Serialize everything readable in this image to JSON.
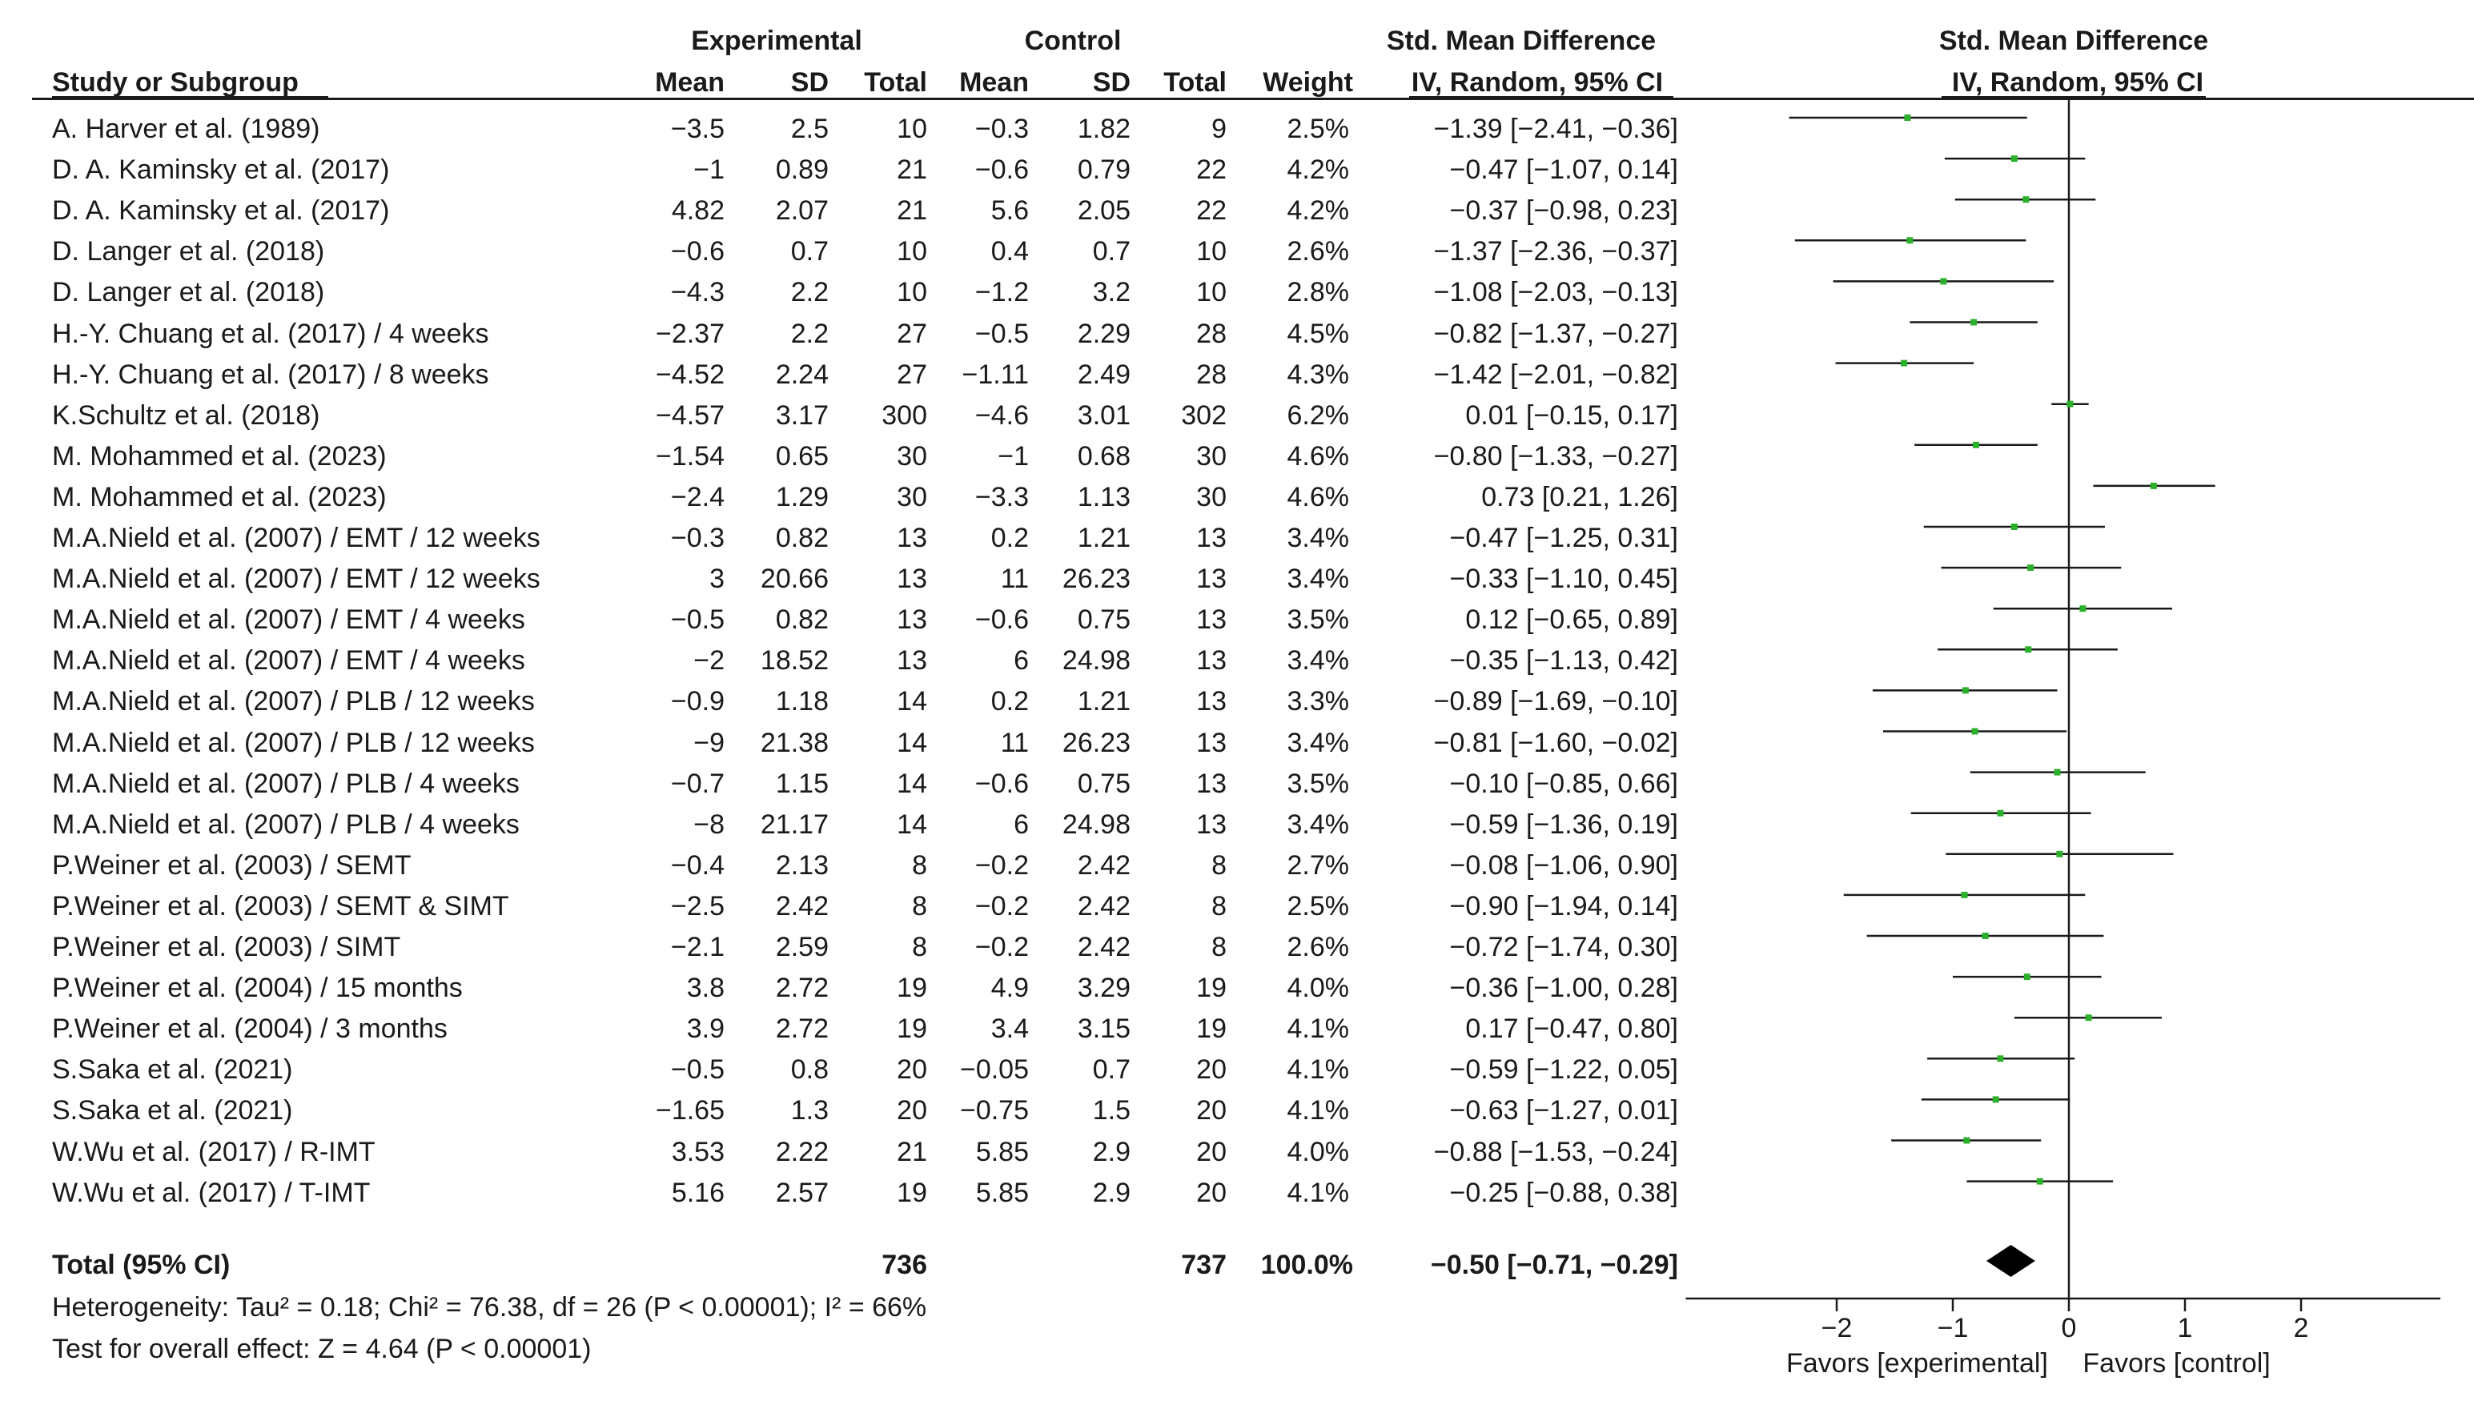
{
  "header": {
    "experimental": "Experimental",
    "control": "Control",
    "smd_table": "Std. Mean Difference",
    "smd_plot": "Std. Mean Difference",
    "study": "Study or Subgroup",
    "mean_e": "Mean",
    "sd_e": "SD",
    "total_e": "Total",
    "mean_c": "Mean",
    "sd_c": "SD",
    "total_c": "Total",
    "weight": "Weight",
    "ci_table": "IV, Random, 95% CI",
    "ci_plot": "IV, Random, 95% CI"
  },
  "rows": [
    {
      "study": "A. Harver et al. (1989)",
      "mean_e": "−3.5",
      "sd_e": "2.5",
      "n_e": "10",
      "mean_c": "−0.3",
      "sd_c": "1.82",
      "n_c": "9",
      "weight": "2.5%",
      "ci": "−1.39 [−2.41, −0.36]"
    },
    {
      "study": "D. A. Kaminsky et al. (2017)",
      "mean_e": "−1",
      "sd_e": "0.89",
      "n_e": "21",
      "mean_c": "−0.6",
      "sd_c": "0.79",
      "n_c": "22",
      "weight": "4.2%",
      "ci": "−0.47 [−1.07, 0.14]"
    },
    {
      "study": "D. A. Kaminsky et al. (2017)",
      "mean_e": "4.82",
      "sd_e": "2.07",
      "n_e": "21",
      "mean_c": "5.6",
      "sd_c": "2.05",
      "n_c": "22",
      "weight": "4.2%",
      "ci": "−0.37 [−0.98, 0.23]"
    },
    {
      "study": "D. Langer et al. (2018)",
      "mean_e": "−0.6",
      "sd_e": "0.7",
      "n_e": "10",
      "mean_c": "0.4",
      "sd_c": "0.7",
      "n_c": "10",
      "weight": "2.6%",
      "ci": "−1.37 [−2.36, −0.37]"
    },
    {
      "study": "D. Langer et al. (2018)",
      "mean_e": "−4.3",
      "sd_e": "2.2",
      "n_e": "10",
      "mean_c": "−1.2",
      "sd_c": "3.2",
      "n_c": "10",
      "weight": "2.8%",
      "ci": "−1.08 [−2.03, −0.13]"
    },
    {
      "study": "H.-Y. Chuang et al. (2017) / 4 weeks",
      "mean_e": "−2.37",
      "sd_e": "2.2",
      "n_e": "27",
      "mean_c": "−0.5",
      "sd_c": "2.29",
      "n_c": "28",
      "weight": "4.5%",
      "ci": "−0.82 [−1.37, −0.27]"
    },
    {
      "study": "H.-Y. Chuang et al. (2017) / 8 weeks",
      "mean_e": "−4.52",
      "sd_e": "2.24",
      "n_e": "27",
      "mean_c": "−1.11",
      "sd_c": "2.49",
      "n_c": "28",
      "weight": "4.3%",
      "ci": "−1.42 [−2.01, −0.82]"
    },
    {
      "study": "K.Schultz et al. (2018)",
      "mean_e": "−4.57",
      "sd_e": "3.17",
      "n_e": "300",
      "mean_c": "−4.6",
      "sd_c": "3.01",
      "n_c": "302",
      "weight": "6.2%",
      "ci": "0.01 [−0.15, 0.17]"
    },
    {
      "study": "M. Mohammed et al. (2023)",
      "mean_e": "−1.54",
      "sd_e": "0.65",
      "n_e": "30",
      "mean_c": "−1",
      "sd_c": "0.68",
      "n_c": "30",
      "weight": "4.6%",
      "ci": "−0.80 [−1.33, −0.27]"
    },
    {
      "study": "M. Mohammed et al. (2023)",
      "mean_e": "−2.4",
      "sd_e": "1.29",
      "n_e": "30",
      "mean_c": "−3.3",
      "sd_c": "1.13",
      "n_c": "30",
      "weight": "4.6%",
      "ci": "0.73 [0.21, 1.26]"
    },
    {
      "study": "M.A.Nield et al. (2007) / EMT / 12 weeks",
      "mean_e": "−0.3",
      "sd_e": "0.82",
      "n_e": "13",
      "mean_c": "0.2",
      "sd_c": "1.21",
      "n_c": "13",
      "weight": "3.4%",
      "ci": "−0.47 [−1.25, 0.31]"
    },
    {
      "study": "M.A.Nield et al. (2007) / EMT / 12 weeks",
      "mean_e": "3",
      "sd_e": "20.66",
      "n_e": "13",
      "mean_c": "11",
      "sd_c": "26.23",
      "n_c": "13",
      "weight": "3.4%",
      "ci": "−0.33 [−1.10, 0.45]"
    },
    {
      "study": "M.A.Nield et al. (2007) / EMT / 4 weeks",
      "mean_e": "−0.5",
      "sd_e": "0.82",
      "n_e": "13",
      "mean_c": "−0.6",
      "sd_c": "0.75",
      "n_c": "13",
      "weight": "3.5%",
      "ci": "0.12 [−0.65, 0.89]"
    },
    {
      "study": "M.A.Nield et al. (2007) / EMT / 4 weeks",
      "mean_e": "−2",
      "sd_e": "18.52",
      "n_e": "13",
      "mean_c": "6",
      "sd_c": "24.98",
      "n_c": "13",
      "weight": "3.4%",
      "ci": "−0.35 [−1.13, 0.42]"
    },
    {
      "study": "M.A.Nield et al. (2007) / PLB / 12 weeks",
      "mean_e": "−0.9",
      "sd_e": "1.18",
      "n_e": "14",
      "mean_c": "0.2",
      "sd_c": "1.21",
      "n_c": "13",
      "weight": "3.3%",
      "ci": "−0.89 [−1.69, −0.10]"
    },
    {
      "study": "M.A.Nield et al. (2007) / PLB / 12 weeks",
      "mean_e": "−9",
      "sd_e": "21.38",
      "n_e": "14",
      "mean_c": "11",
      "sd_c": "26.23",
      "n_c": "13",
      "weight": "3.4%",
      "ci": "−0.81 [−1.60, −0.02]"
    },
    {
      "study": "M.A.Nield et al. (2007) / PLB / 4 weeks",
      "mean_e": "−0.7",
      "sd_e": "1.15",
      "n_e": "14",
      "mean_c": "−0.6",
      "sd_c": "0.75",
      "n_c": "13",
      "weight": "3.5%",
      "ci": "−0.10 [−0.85, 0.66]"
    },
    {
      "study": "M.A.Nield et al. (2007) / PLB / 4 weeks",
      "mean_e": "−8",
      "sd_e": "21.17",
      "n_e": "14",
      "mean_c": "6",
      "sd_c": "24.98",
      "n_c": "13",
      "weight": "3.4%",
      "ci": "−0.59 [−1.36, 0.19]"
    },
    {
      "study": "P.Weiner et al. (2003) / SEMT",
      "mean_e": "−0.4",
      "sd_e": "2.13",
      "n_e": "8",
      "mean_c": "−0.2",
      "sd_c": "2.42",
      "n_c": "8",
      "weight": "2.7%",
      "ci": "−0.08 [−1.06, 0.90]"
    },
    {
      "study": "P.Weiner et al. (2003) / SEMT & SIMT",
      "mean_e": "−2.5",
      "sd_e": "2.42",
      "n_e": "8",
      "mean_c": "−0.2",
      "sd_c": "2.42",
      "n_c": "8",
      "weight": "2.5%",
      "ci": "−0.90 [−1.94, 0.14]"
    },
    {
      "study": "P.Weiner et al. (2003) / SIMT",
      "mean_e": "−2.1",
      "sd_e": "2.59",
      "n_e": "8",
      "mean_c": "−0.2",
      "sd_c": "2.42",
      "n_c": "8",
      "weight": "2.6%",
      "ci": "−0.72 [−1.74, 0.30]"
    },
    {
      "study": "P.Weiner et al. (2004) / 15 months",
      "mean_e": "3.8",
      "sd_e": "2.72",
      "n_e": "19",
      "mean_c": "4.9",
      "sd_c": "3.29",
      "n_c": "19",
      "weight": "4.0%",
      "ci": "−0.36 [−1.00, 0.28]"
    },
    {
      "study": "P.Weiner et al. (2004) / 3 months",
      "mean_e": "3.9",
      "sd_e": "2.72",
      "n_e": "19",
      "mean_c": "3.4",
      "sd_c": "3.15",
      "n_c": "19",
      "weight": "4.1%",
      "ci": "0.17 [−0.47, 0.80]"
    },
    {
      "study": "S.Saka et al. (2021)",
      "mean_e": "−0.5",
      "sd_e": "0.8",
      "n_e": "20",
      "mean_c": "−0.05",
      "sd_c": "0.7",
      "n_c": "20",
      "weight": "4.1%",
      "ci": "−0.59 [−1.22, 0.05]"
    },
    {
      "study": "S.Saka et al. (2021)",
      "mean_e": "−1.65",
      "sd_e": "1.3",
      "n_e": "20",
      "mean_c": "−0.75",
      "sd_c": "1.5",
      "n_c": "20",
      "weight": "4.1%",
      "ci": "−0.63 [−1.27, 0.01]"
    },
    {
      "study": "W.Wu et al. (2017) / R-IMT",
      "mean_e": "3.53",
      "sd_e": "2.22",
      "n_e": "21",
      "mean_c": "5.85",
      "sd_c": "2.9",
      "n_c": "20",
      "weight": "4.0%",
      "ci": "−0.88 [−1.53, −0.24]"
    },
    {
      "study": "W.Wu et al. (2017) / T-IMT",
      "mean_e": "5.16",
      "sd_e": "2.57",
      "n_e": "19",
      "mean_c": "5.85",
      "sd_c": "2.9",
      "n_c": "20",
      "weight": "4.1%",
      "ci": "−0.25 [−0.88, 0.38]"
    }
  ],
  "total": {
    "label": "Total (95% CI)",
    "n_e": "736",
    "n_c": "737",
    "weight": "100.0%",
    "ci": "−0.50 [−0.71, −0.29]"
  },
  "heterogeneity": "Heterogeneity: Tau² = 0.18; Chi² = 76.38, df = 26 (P < 0.00001); I² = 66%",
  "overall_effect": "Test for overall effect: Z = 4.64 (P < 0.00001)",
  "chart_data": {
    "type": "forest",
    "title": "Std. Mean Difference IV, Random, 95% CI",
    "xlim": [
      -3.3,
      3.2
    ],
    "x_ticks": [
      -2,
      -1,
      0,
      1,
      2
    ],
    "x_tick_labels": [
      "−2",
      "−1",
      "0",
      "1",
      "2"
    ],
    "xlabel_left": "Favors [experimental]",
    "xlabel_right": "Favors [control]",
    "points": [
      {
        "smd": -1.39,
        "lo": -2.41,
        "hi": -0.36
      },
      {
        "smd": -0.47,
        "lo": -1.07,
        "hi": 0.14
      },
      {
        "smd": -0.37,
        "lo": -0.98,
        "hi": 0.23
      },
      {
        "smd": -1.37,
        "lo": -2.36,
        "hi": -0.37
      },
      {
        "smd": -1.08,
        "lo": -2.03,
        "hi": -0.13
      },
      {
        "smd": -0.82,
        "lo": -1.37,
        "hi": -0.27
      },
      {
        "smd": -1.42,
        "lo": -2.01,
        "hi": -0.82
      },
      {
        "smd": 0.01,
        "lo": -0.15,
        "hi": 0.17
      },
      {
        "smd": -0.8,
        "lo": -1.33,
        "hi": -0.27
      },
      {
        "smd": 0.73,
        "lo": 0.21,
        "hi": 1.26
      },
      {
        "smd": -0.47,
        "lo": -1.25,
        "hi": 0.31
      },
      {
        "smd": -0.33,
        "lo": -1.1,
        "hi": 0.45
      },
      {
        "smd": 0.12,
        "lo": -0.65,
        "hi": 0.89
      },
      {
        "smd": -0.35,
        "lo": -1.13,
        "hi": 0.42
      },
      {
        "smd": -0.89,
        "lo": -1.69,
        "hi": -0.1
      },
      {
        "smd": -0.81,
        "lo": -1.6,
        "hi": -0.02
      },
      {
        "smd": -0.1,
        "lo": -0.85,
        "hi": 0.66
      },
      {
        "smd": -0.59,
        "lo": -1.36,
        "hi": 0.19
      },
      {
        "smd": -0.08,
        "lo": -1.06,
        "hi": 0.9
      },
      {
        "smd": -0.9,
        "lo": -1.94,
        "hi": 0.14
      },
      {
        "smd": -0.72,
        "lo": -1.74,
        "hi": 0.3
      },
      {
        "smd": -0.36,
        "lo": -1.0,
        "hi": 0.28
      },
      {
        "smd": 0.17,
        "lo": -0.47,
        "hi": 0.8
      },
      {
        "smd": -0.59,
        "lo": -1.22,
        "hi": 0.05
      },
      {
        "smd": -0.63,
        "lo": -1.27,
        "hi": 0.01
      },
      {
        "smd": -0.88,
        "lo": -1.53,
        "hi": -0.24
      },
      {
        "smd": -0.25,
        "lo": -0.88,
        "hi": 0.38
      }
    ],
    "overall": {
      "smd": -0.5,
      "lo": -0.71,
      "hi": -0.29
    },
    "point_color": "#2bb02b",
    "line_color": "#1a1a1a"
  }
}
